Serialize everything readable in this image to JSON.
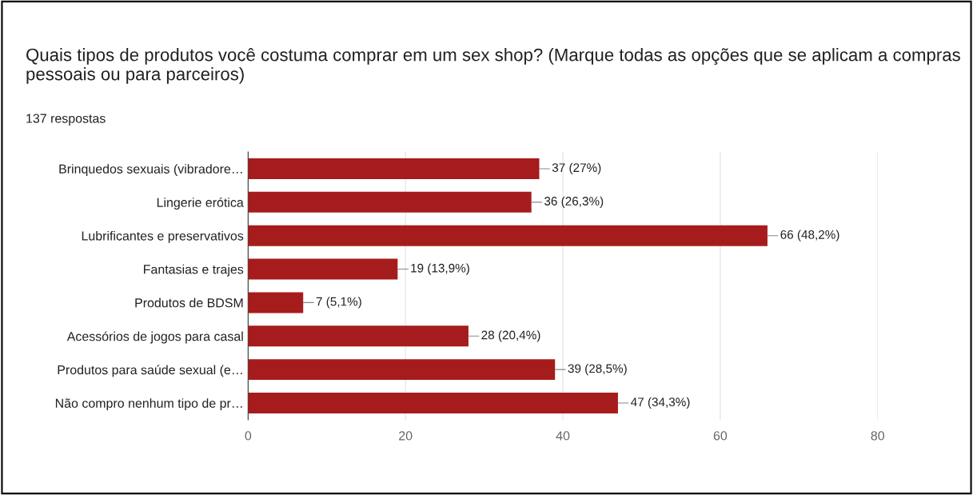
{
  "chart_data": {
    "type": "bar",
    "orientation": "horizontal",
    "title": "Quais tipos de produtos você costuma comprar em um sex shop? (Marque todas as opções que se aplicam a compras pessoais ou para parceiros)",
    "subtitle": "137 respostas",
    "categories": [
      "Brinquedos sexuais (vibradore…",
      "Lingerie erótica",
      "Lubrificantes e preservativos",
      "Fantasias e trajes",
      "Produtos de BDSM",
      "Acessórios de jogos para casal",
      "Produtos para saúde sexual (e…",
      "Não compro nenhum tipo de pr…"
    ],
    "values": [
      37,
      36,
      66,
      19,
      7,
      28,
      39,
      47
    ],
    "value_labels": [
      "37 (27%)",
      "36 (26,3%)",
      "66 (48,2%)",
      "19 (13,9%)",
      "7 (5,1%)",
      "28 (20,4%)",
      "39 (28,5%)",
      "47 (34,3%)"
    ],
    "color": "#a61c1c",
    "xlim": [
      0,
      80
    ],
    "xticks": [
      0,
      20,
      40,
      60,
      80
    ],
    "grid": "x"
  }
}
